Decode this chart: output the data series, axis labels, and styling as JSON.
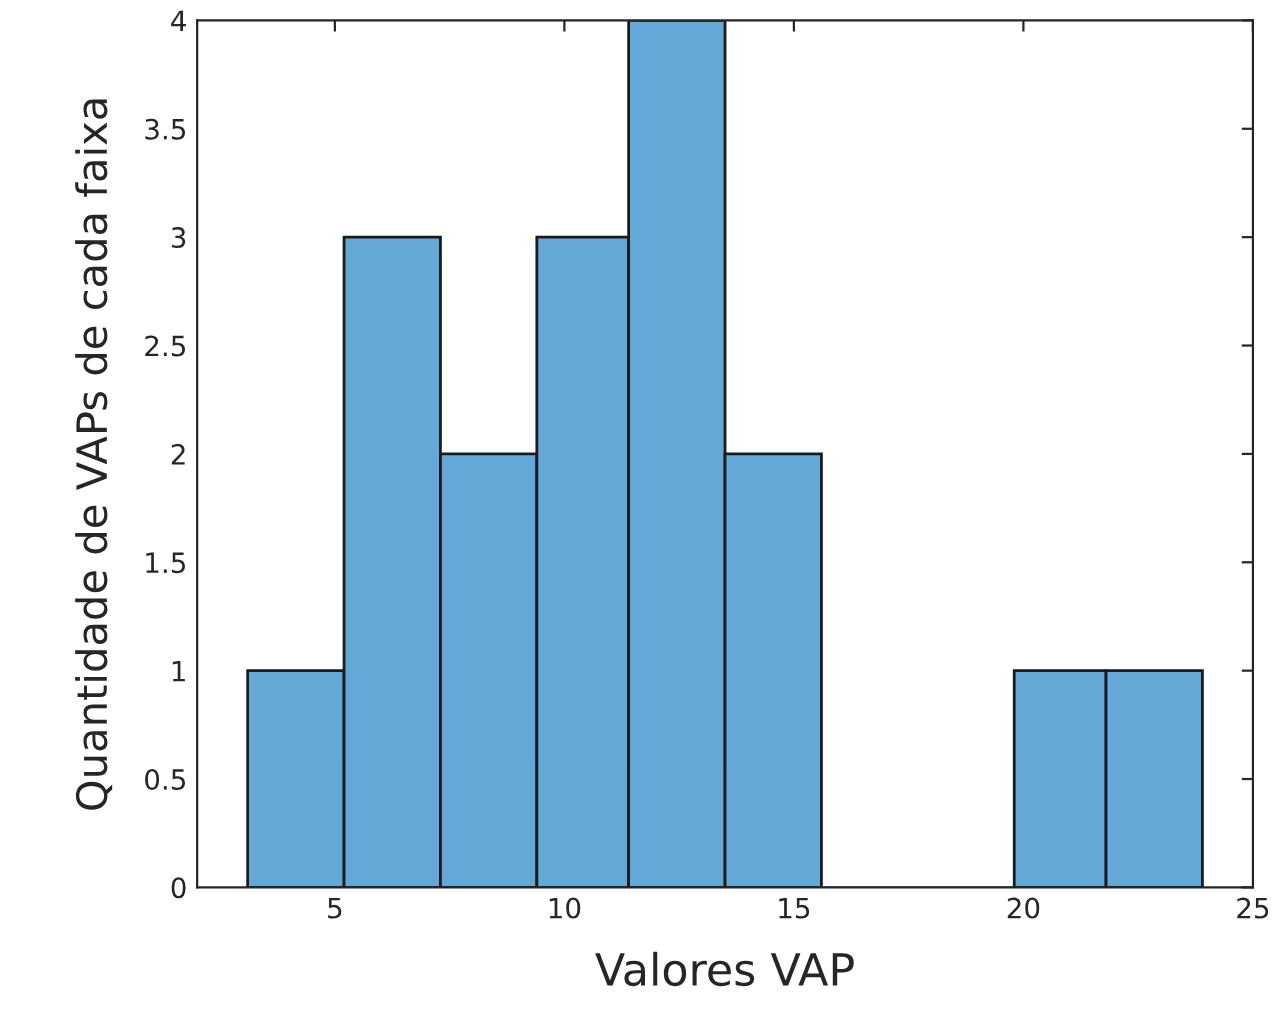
{
  "chart_data": {
    "type": "histogram",
    "xlabel": "Valores VAP",
    "ylabel": "Quantidade de VAPs de cada faixa",
    "bins": [
      3.1,
      5.2,
      7.3,
      9.4,
      11.4,
      13.5,
      15.6,
      17.7,
      19.8,
      21.8,
      23.9
    ],
    "values": [
      1,
      3,
      2,
      3,
      4,
      2,
      0,
      0,
      1,
      1
    ],
    "color": "#64a8d8",
    "xlim": [
      2,
      25
    ],
    "xticks": [
      5,
      10,
      15,
      20,
      25
    ],
    "ylim": [
      0,
      4
    ],
    "yticks": [
      0,
      0.5,
      1,
      1.5,
      2,
      2.5,
      3,
      3.5,
      4
    ],
    "grid": false
  }
}
